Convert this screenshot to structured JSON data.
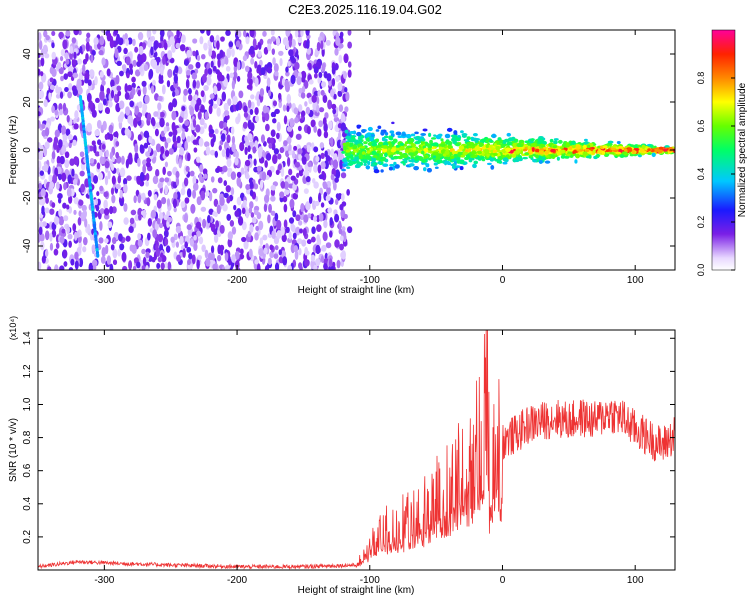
{
  "title": "C2E3.2025.116.19.04.G02",
  "colors": {
    "line": "#ee3333",
    "scatter_purple": "#7a1fe6",
    "scatter_light": "#c9a9f3",
    "axis": "#000000"
  },
  "chart_data": [
    {
      "type": "heatmap",
      "xlabel": "Height of straight line (km)",
      "ylabel": "Frequency (Hz)",
      "xlim": [
        -350,
        130
      ],
      "ylim": [
        -50,
        50
      ],
      "xticks": [
        -300,
        -200,
        -100,
        0,
        100
      ],
      "yticks": [
        -40,
        -20,
        0,
        20,
        40
      ],
      "colorbar": {
        "label": "Normalized spectral amplitude",
        "range": [
          0,
          1
        ],
        "ticks": [
          0.0,
          0.2,
          0.4,
          0.6,
          0.8
        ],
        "tick_labels": [
          "0.0",
          "0.2",
          "0.4",
          "0.6",
          "0.8"
        ],
        "colormap": "rainbow"
      },
      "features": {
        "noise_region_x": [
          -350,
          -115
        ],
        "signal_region_x": [
          -120,
          130
        ],
        "diagonal_streak": {
          "x_start": -318,
          "y_start": 22,
          "x_end": -305,
          "y_end": -44
        }
      }
    },
    {
      "type": "line",
      "xlabel": "Height of straight line (km)",
      "ylabel": "SNR (10 * v/v)",
      "y_multiplier_label": "(x10⁴)",
      "xlim": [
        -350,
        130
      ],
      "ylim": [
        0,
        1.45
      ],
      "xticks": [
        -300,
        -200,
        -100,
        0,
        100
      ],
      "yticks": [
        0.2,
        0.4,
        0.6,
        0.8,
        1.0,
        1.2,
        1.4
      ],
      "ytick_labels": [
        "0.2",
        "0.4",
        "0.6",
        "0.8",
        "1.0",
        "1.2",
        "1.4"
      ],
      "series": [
        {
          "x": [
            -350,
            -320,
            -290,
            -250,
            -200,
            -150,
            -110,
            -100,
            -90,
            -80,
            -70,
            -60,
            -50,
            -40,
            -30,
            -25,
            -20,
            -15,
            -12,
            -10,
            -5,
            0,
            10,
            20,
            30,
            40,
            50,
            60,
            70,
            80,
            90,
            100,
            110,
            120,
            130
          ],
          "y": [
            0.02,
            0.05,
            0.04,
            0.03,
            0.02,
            0.02,
            0.03,
            0.15,
            0.25,
            0.28,
            0.32,
            0.38,
            0.45,
            0.55,
            0.65,
            0.7,
            0.75,
            0.8,
            1.45,
            0.6,
            0.75,
            0.78,
            0.82,
            0.88,
            0.9,
            0.92,
            0.9,
            0.92,
            0.9,
            0.95,
            0.92,
            0.85,
            0.8,
            0.75,
            0.82
          ]
        }
      ]
    }
  ]
}
